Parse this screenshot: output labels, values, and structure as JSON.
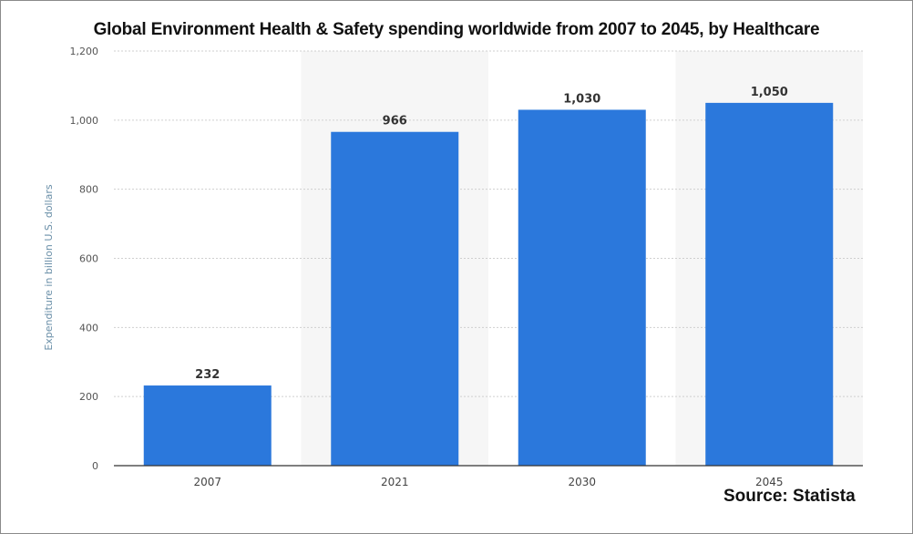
{
  "title": "Global Environment Health & Safety spending worldwide from 2007 to 2045, by Healthcare",
  "source": "Source: Statista",
  "chart_data": {
    "type": "bar",
    "categories": [
      "2007",
      "2021",
      "2030",
      "2045"
    ],
    "values": [
      232,
      966,
      1030,
      1050
    ],
    "value_labels": [
      "232",
      "966",
      "1,030",
      "1,050"
    ],
    "ylabel": "Expenditure in billion U.S. dollars",
    "xlabel": "",
    "ylim": [
      0,
      1200
    ],
    "yticks": [
      0,
      200,
      400,
      600,
      800,
      1000,
      1200
    ],
    "ytick_labels": [
      "0",
      "200",
      "400",
      "600",
      "800",
      "1,000",
      "1,200"
    ],
    "grid": "horizontal dotted",
    "legend": "none",
    "colors": {
      "bar": "#2b78dc",
      "grid": "#cfcfcf",
      "axis": "#333333"
    }
  }
}
